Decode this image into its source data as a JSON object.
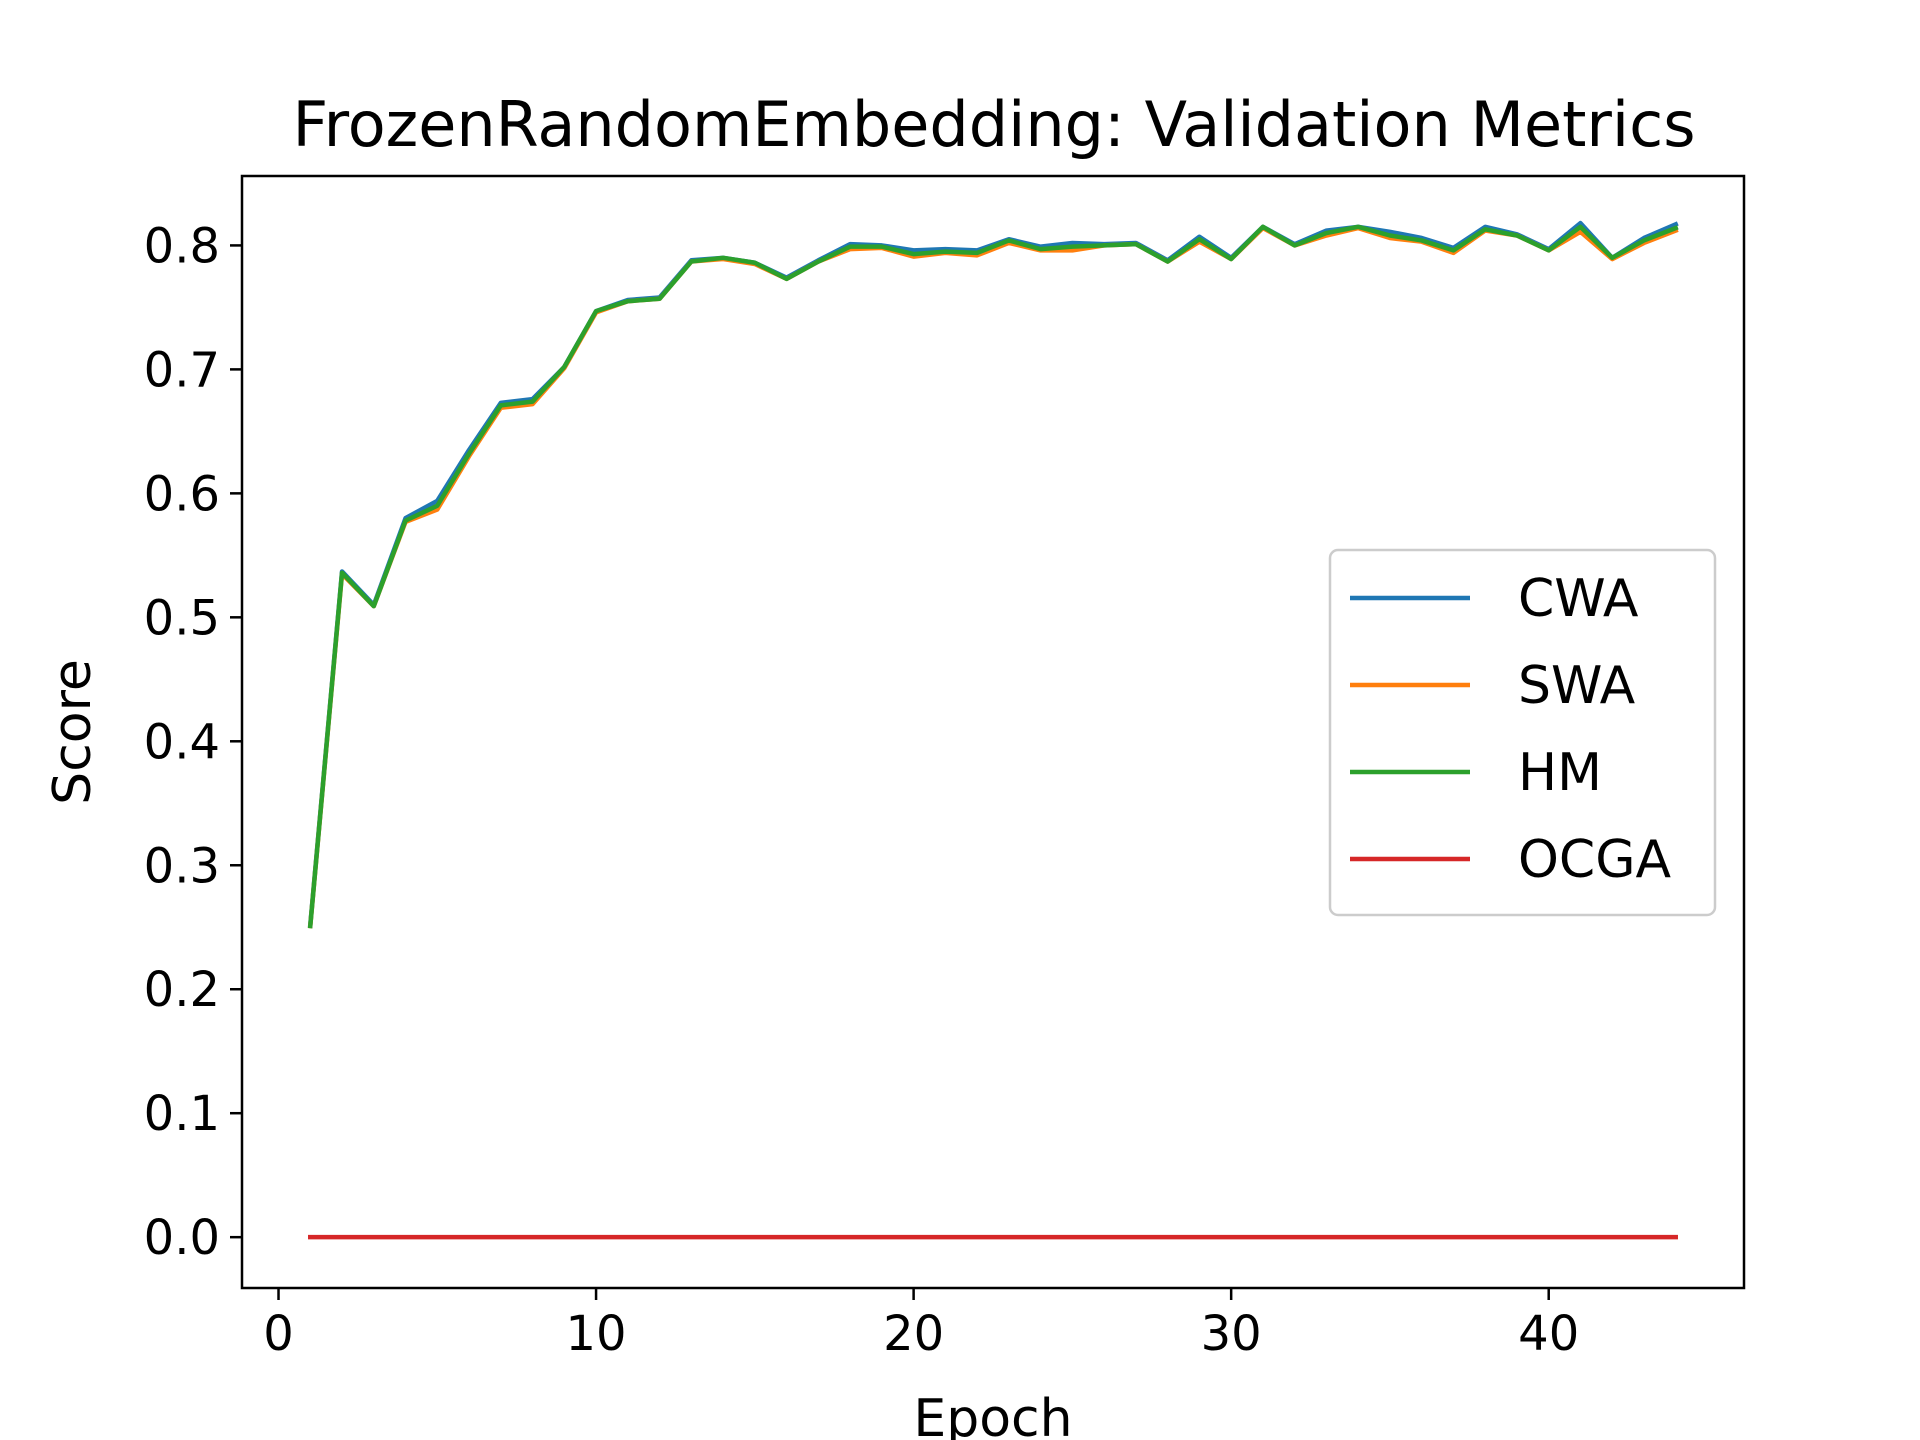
{
  "chart_data": {
    "type": "line",
    "title": "FrozenRandomEmbedding: Validation Metrics",
    "xlabel": "Epoch",
    "ylabel": "Score",
    "xlim": [
      -1.15,
      46.15
    ],
    "ylim": [
      -0.041,
      0.856
    ],
    "x_ticks": [
      0,
      10,
      20,
      30,
      40
    ],
    "y_ticks": [
      0.0,
      0.1,
      0.2,
      0.3,
      0.4,
      0.5,
      0.6,
      0.7,
      0.8
    ],
    "x_tick_labels": [
      "0",
      "10",
      "20",
      "30",
      "40"
    ],
    "y_tick_labels": [
      "0.0",
      "0.1",
      "0.2",
      "0.3",
      "0.4",
      "0.5",
      "0.6",
      "0.7",
      "0.8"
    ],
    "grid": false,
    "legend_position": "center-right",
    "x": [
      1,
      2,
      3,
      4,
      5,
      6,
      7,
      8,
      9,
      10,
      11,
      12,
      13,
      14,
      15,
      16,
      17,
      18,
      19,
      20,
      21,
      22,
      23,
      24,
      25,
      26,
      27,
      28,
      29,
      30,
      31,
      32,
      33,
      34,
      35,
      36,
      37,
      38,
      39,
      40,
      41,
      42,
      43,
      44
    ],
    "series": [
      {
        "name": "CWA",
        "color": "#1f77b4",
        "values": [
          0.252,
          0.537,
          0.51,
          0.58,
          0.594,
          0.635,
          0.673,
          0.676,
          0.702,
          0.747,
          0.756,
          0.758,
          0.788,
          0.79,
          0.786,
          0.774,
          0.788,
          0.801,
          0.8,
          0.796,
          0.797,
          0.796,
          0.805,
          0.799,
          0.802,
          0.801,
          0.802,
          0.788,
          0.807,
          0.79,
          0.815,
          0.801,
          0.812,
          0.815,
          0.811,
          0.806,
          0.798,
          0.815,
          0.809,
          0.797,
          0.818,
          0.79,
          0.806,
          0.817
        ]
      },
      {
        "name": "SWA",
        "color": "#ff7f0e",
        "values": [
          0.251,
          0.535,
          0.509,
          0.577,
          0.587,
          0.63,
          0.669,
          0.672,
          0.701,
          0.746,
          0.755,
          0.757,
          0.787,
          0.789,
          0.785,
          0.773,
          0.787,
          0.797,
          0.798,
          0.791,
          0.794,
          0.792,
          0.802,
          0.796,
          0.796,
          0.8,
          0.801,
          0.787,
          0.803,
          0.789,
          0.814,
          0.8,
          0.808,
          0.814,
          0.806,
          0.803,
          0.794,
          0.812,
          0.808,
          0.796,
          0.811,
          0.789,
          0.802,
          0.812
        ]
      },
      {
        "name": "HM",
        "color": "#2ca02c",
        "values": [
          0.251,
          0.536,
          0.509,
          0.578,
          0.59,
          0.632,
          0.671,
          0.674,
          0.702,
          0.747,
          0.755,
          0.757,
          0.787,
          0.79,
          0.786,
          0.773,
          0.787,
          0.799,
          0.799,
          0.793,
          0.795,
          0.794,
          0.804,
          0.797,
          0.799,
          0.8,
          0.801,
          0.787,
          0.805,
          0.789,
          0.815,
          0.8,
          0.81,
          0.815,
          0.808,
          0.804,
          0.796,
          0.813,
          0.808,
          0.796,
          0.815,
          0.79,
          0.804,
          0.814
        ]
      },
      {
        "name": "OCGA",
        "color": "#d62728",
        "values": [
          0,
          0,
          0,
          0,
          0,
          0,
          0,
          0,
          0,
          0,
          0,
          0,
          0,
          0,
          0,
          0,
          0,
          0,
          0,
          0,
          0,
          0,
          0,
          0,
          0,
          0,
          0,
          0,
          0,
          0,
          0,
          0,
          0,
          0,
          0,
          0,
          0,
          0,
          0,
          0,
          0,
          0,
          0,
          0
        ]
      }
    ]
  }
}
